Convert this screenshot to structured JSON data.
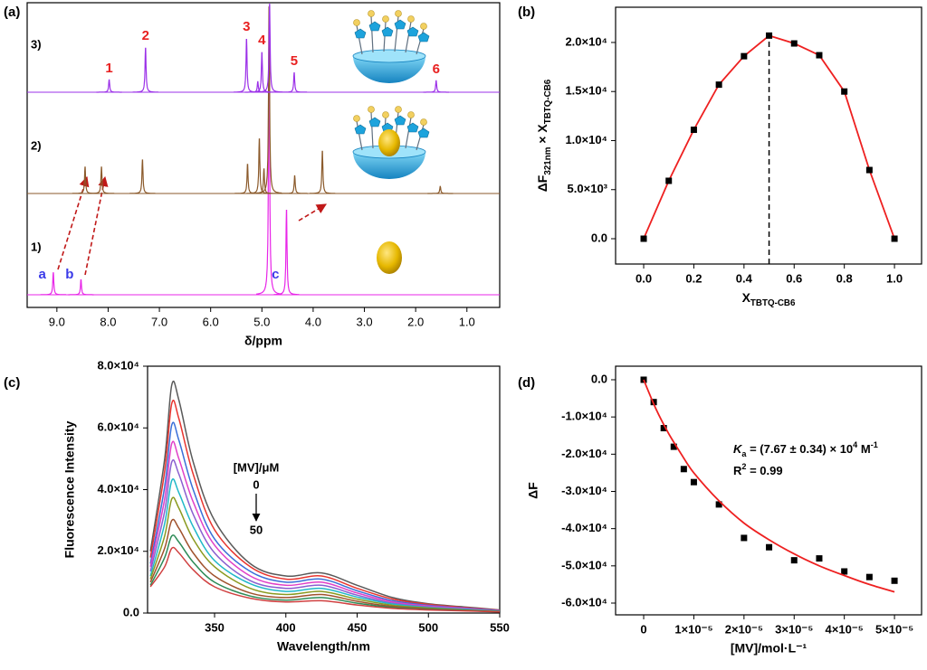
{
  "chart_data": [
    {
      "type": "nmr",
      "panel_label": "(a)",
      "xlabel": "δ/ppm",
      "xlim": [
        9.58,
        0.36
      ],
      "xticks": [
        {
          "value": 9,
          "label": "9.0"
        },
        {
          "value": 8,
          "label": "8.0"
        },
        {
          "value": 7,
          "label": "7.0"
        },
        {
          "value": 6,
          "label": "6.0"
        },
        {
          "value": 5,
          "label": "5.0"
        },
        {
          "value": 4,
          "label": "4.0"
        },
        {
          "value": 3,
          "label": "3.0"
        },
        {
          "value": 2,
          "label": "2.0"
        },
        {
          "value": 1,
          "label": "1.0"
        }
      ],
      "series": [
        {
          "name": "1)",
          "color": "#e826e8",
          "label_color": "#3a3ae8",
          "label_position": "left",
          "x": [
            9.07,
            8.53,
            4.86,
            4.52
          ],
          "values": [
            25,
            17,
            321,
            96
          ],
          "peak_labels": [
            "a",
            "b",
            null,
            "c"
          ]
        },
        {
          "name": "2)",
          "color": "#8b5a2b",
          "x": [
            8.45,
            8.13,
            7.33,
            5.28,
            5.05,
            4.96,
            4.86,
            4.36,
            3.82,
            1.52
          ],
          "values": [
            30,
            30,
            38,
            33,
            62,
            28,
            212,
            20,
            48,
            8
          ]
        },
        {
          "name": "3)",
          "color": "#9b30e8",
          "label_color": "#e82020",
          "label_position": "above",
          "x": [
            7.98,
            7.27,
            5.3,
            5.08,
            5.0,
            4.85,
            4.37,
            1.6
          ],
          "values": [
            14,
            50,
            60,
            12,
            45,
            100,
            22,
            13
          ],
          "peak_labels": [
            "1",
            "2",
            "3",
            null,
            "4",
            null,
            "5",
            "6"
          ]
        }
      ]
    },
    {
      "type": "line",
      "panel_label": "(b)",
      "xlabel": [
        {
          "text": "X"
        },
        {
          "text": "TBTQ-CB6",
          "sub": true
        }
      ],
      "ylabel": [
        {
          "text": "ΔF"
        },
        {
          "text": "321nm",
          "sub": true
        },
        {
          "text": " × X"
        },
        {
          "text": "TBTQ-CB6",
          "sub": true
        }
      ],
      "x": [
        0,
        0.1,
        0.2,
        0.3,
        0.4,
        0.5,
        0.6,
        0.7,
        0.8,
        0.9,
        1
      ],
      "values": [
        0,
        5900,
        11100,
        15700,
        18600,
        20700,
        19900,
        18700,
        15000,
        7000,
        0
      ],
      "color": "#ee2020",
      "marker_color": "#000000",
      "vline": 0.5,
      "xlim": [
        -0.112,
        1.108
      ],
      "ylim": [
        -2580,
        23590
      ],
      "xticks": [
        {
          "value": 0,
          "label": "0.0"
        },
        0.2,
        0.4,
        0.6,
        0.8,
        {
          "value": 1,
          "label": "1.0"
        }
      ],
      "yticks": [
        {
          "value": 0,
          "label": "0.0"
        },
        {
          "value": 5000,
          "label": "5.0×10³"
        },
        {
          "value": 10000,
          "label": "1.0×10⁴"
        },
        {
          "value": 15000,
          "label": "1.5×10⁴"
        },
        {
          "value": 20000,
          "label": "2.0×10⁴"
        }
      ]
    },
    {
      "type": "line",
      "panel_label": "(c)",
      "xlabel": "Wavelength/nm",
      "ylabel": "Fluorescence Intensity",
      "annotation": {
        "title": "[MV]/μM",
        "start": "0",
        "end": "50"
      },
      "x": [
        305,
        315,
        320,
        325,
        335,
        350,
        375,
        400,
        425,
        450,
        475,
        500,
        525,
        550
      ],
      "series": [
        {
          "color": "#5a5a5a",
          "values": [
            20000,
            50000,
            74000,
            69000,
            49000,
            30000,
            16000,
            12000,
            13000,
            9000,
            5000,
            3000,
            2000,
            1000
          ]
        },
        {
          "color": "#e8352f",
          "values": [
            18000,
            46000,
            68000,
            63000,
            45000,
            27000,
            15000,
            11000,
            12000,
            8000,
            4500,
            2800,
            1800,
            900
          ]
        },
        {
          "color": "#3a6fd8",
          "values": [
            16000,
            41000,
            61000,
            56000,
            40000,
            24000,
            13500,
            10000,
            11000,
            7200,
            4000,
            2500,
            1600,
            800
          ]
        },
        {
          "color": "#e040c8",
          "values": [
            15000,
            37000,
            55000,
            50000,
            36000,
            22000,
            12000,
            9000,
            10000,
            6500,
            3600,
            2300,
            1500,
            700
          ]
        },
        {
          "color": "#8a5fd0",
          "values": [
            13500,
            33000,
            49000,
            45000,
            32000,
            19500,
            10500,
            8000,
            9000,
            5800,
            3200,
            2000,
            1300,
            650
          ]
        },
        {
          "color": "#20b8c8",
          "values": [
            12000,
            29000,
            43000,
            39000,
            28000,
            17000,
            9500,
            7000,
            8000,
            5200,
            2900,
            1800,
            1200,
            600
          ]
        },
        {
          "color": "#8a9a20",
          "values": [
            11000,
            25000,
            37000,
            34000,
            24000,
            15000,
            8000,
            6000,
            7000,
            4500,
            2500,
            1600,
            1000,
            500
          ]
        },
        {
          "color": "#a0522d",
          "values": [
            10000,
            21000,
            30000,
            27500,
            19500,
            12000,
            6500,
            5000,
            6000,
            3800,
            2100,
            1400,
            900,
            450
          ]
        },
        {
          "color": "#2e8b57",
          "values": [
            9000,
            18000,
            25000,
            23000,
            16500,
            10000,
            5500,
            4200,
            5000,
            3200,
            1800,
            1200,
            800,
            400
          ]
        },
        {
          "color": "#d04040",
          "values": [
            8500,
            15000,
            21000,
            19500,
            14000,
            8500,
            4800,
            3600,
            4000,
            2600,
            1500,
            1000,
            700,
            350
          ]
        }
      ],
      "xlim": [
        303,
        550
      ],
      "ylim": [
        0,
        80000
      ],
      "xticks": [
        350,
        400,
        450,
        500,
        550
      ],
      "yticks": [
        {
          "value": 0,
          "label": "0.0"
        },
        {
          "value": 20000,
          "label": "2.0×10⁴"
        },
        {
          "value": 40000,
          "label": "4.0×10⁴"
        },
        {
          "value": 60000,
          "label": "6.0×10⁴"
        },
        {
          "value": 80000,
          "label": "8.0×10⁴"
        }
      ]
    },
    {
      "type": "scatter",
      "panel_label": "(d)",
      "xlabel": "[MV]/mol·L⁻¹",
      "ylabel": "ΔF",
      "annotations": [
        [
          {
            "text": "K",
            "italic": true
          },
          {
            "text": "a",
            "sub": true
          },
          {
            "text": " = (7.67 ± 0.34) × 10"
          },
          {
            "text": "4",
            "sup": true
          },
          {
            "text": " M"
          },
          {
            "text": "-1",
            "sup": true
          }
        ],
        [
          {
            "text": "R"
          },
          {
            "text": "2",
            "sup": true
          },
          {
            "text": " = 0.99"
          }
        ]
      ],
      "series": [
        {
          "mode": "marker",
          "color": "#000000",
          "x": [
            0,
            2e-06,
            4e-06,
            6e-06,
            8e-06,
            1e-05,
            1.5e-05,
            2e-05,
            2.5e-05,
            3e-05,
            3.5e-05,
            4e-05,
            4.5e-05,
            5e-05
          ],
          "values": [
            0,
            -6000,
            -13000,
            -18000,
            -24000,
            -27500,
            -33500,
            -42500,
            -45000,
            -48500,
            -48000,
            -51500,
            -53000,
            -54000
          ]
        },
        {
          "mode": "line",
          "color": "#ee2020",
          "x": [
            0,
            2.5e-06,
            5e-06,
            7.5e-06,
            1e-05,
            1.5e-05,
            2e-05,
            2.5e-05,
            3e-05,
            3.5e-05,
            4e-05,
            4.5e-05,
            5e-05
          ],
          "values": [
            0,
            -8000,
            -14500,
            -20000,
            -25000,
            -32500,
            -38500,
            -43000,
            -46800,
            -50000,
            -52600,
            -55000,
            -57000
          ]
        }
      ],
      "xlim": [
        -5.6e-06,
        5.54e-05
      ],
      "ylim": [
        -63160,
        3640
      ],
      "xticks": [
        0,
        {
          "value": 1e-05,
          "label": "1×10⁻⁵"
        },
        {
          "value": 2e-05,
          "label": "2×10⁻⁵"
        },
        {
          "value": 3e-05,
          "label": "3×10⁻⁵"
        },
        {
          "value": 4e-05,
          "label": "4×10⁻⁵"
        },
        {
          "value": 5e-05,
          "label": "5×10⁻⁵"
        }
      ],
      "yticks": [
        {
          "value": 0,
          "label": "0.0"
        },
        {
          "value": -10000,
          "label": "-1.0×10⁴"
        },
        {
          "value": -20000,
          "label": "-2.0×10⁴"
        },
        {
          "value": -30000,
          "label": "-3.0×10⁴"
        },
        {
          "value": -40000,
          "label": "-4.0×10⁴"
        },
        {
          "value": -50000,
          "label": "-5.0×10⁴"
        },
        {
          "value": -60000,
          "label": "-6.0×10⁴"
        }
      ]
    }
  ]
}
